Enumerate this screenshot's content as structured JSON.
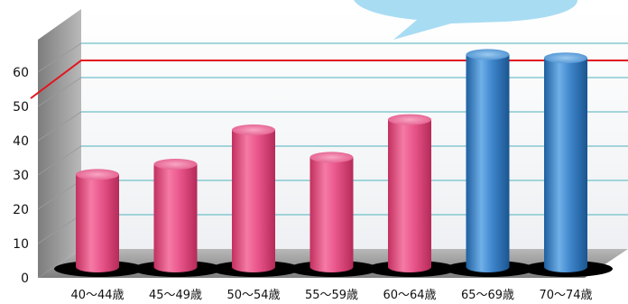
{
  "chart_data": {
    "type": "bar",
    "title": "",
    "xlabel": "",
    "ylabel": "",
    "ylim": [
      0,
      60
    ],
    "yticks": [
      "0",
      "10",
      "20",
      "30",
      "40",
      "50",
      "60"
    ],
    "categories": [
      "40～44歳",
      "45～49歳",
      "50～54歳",
      "55～59歳",
      "60～64歳",
      "65～69歳",
      "70～74歳"
    ],
    "values": [
      27,
      30,
      40,
      32,
      43,
      62,
      61
    ],
    "reference_line": 55,
    "colors": {
      "pink": "#e9558b",
      "blue": "#3f86cc",
      "reference": "#e2141e",
      "grid": "#6fc0c8",
      "callout": "#a8dcf3"
    },
    "bar_colors": [
      "pink",
      "pink",
      "pink",
      "pink",
      "pink",
      "blue",
      "blue"
    ],
    "grid": true,
    "legend": "none",
    "style": "3d-cylinder"
  }
}
